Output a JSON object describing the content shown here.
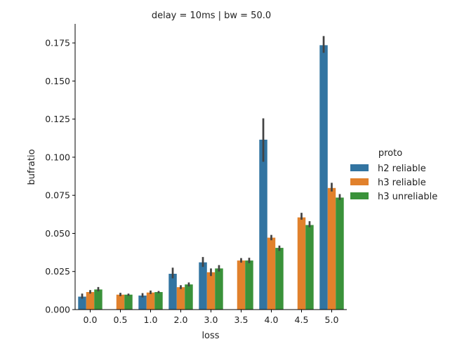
{
  "chart_data": {
    "type": "bar",
    "title": "delay = 10ms | bw = 50.0",
    "xlabel": "loss",
    "ylabel": "bufratio",
    "categories": [
      "0.0",
      "0.5",
      "1.0",
      "2.0",
      "3.0",
      "3.5",
      "4.0",
      "4.5",
      "5.0"
    ],
    "ylim": [
      0,
      0.1875
    ],
    "yticks": [
      0.0,
      0.025,
      0.05,
      0.075,
      0.1,
      0.125,
      0.15,
      0.175
    ],
    "ytick_labels": [
      "0.000",
      "0.025",
      "0.050",
      "0.075",
      "0.100",
      "0.125",
      "0.150",
      "0.175"
    ],
    "legend_title": "proto",
    "legend_position": "right",
    "grid": false,
    "series": [
      {
        "name": "h2 reliable",
        "color": "#3274a1",
        "values": [
          0.0085,
          null,
          0.0092,
          0.0235,
          0.031,
          null,
          0.1115,
          null,
          0.1735
        ],
        "err_low": [
          0.0072,
          null,
          0.008,
          0.0205,
          0.028,
          null,
          0.097,
          null,
          0.1685
        ],
        "err_high": [
          0.0105,
          null,
          0.0108,
          0.0275,
          0.0345,
          null,
          0.1255,
          null,
          0.1795
        ]
      },
      {
        "name": "h3 reliable",
        "color": "#e1812c",
        "values": [
          0.0115,
          0.0098,
          0.0112,
          0.0147,
          0.0245,
          0.0322,
          0.0472,
          0.0605,
          0.0798
        ],
        "err_low": [
          0.0105,
          0.0088,
          0.0102,
          0.0135,
          0.022,
          0.0308,
          0.0455,
          0.059,
          0.0775
        ],
        "err_high": [
          0.0128,
          0.011,
          0.0125,
          0.016,
          0.027,
          0.0338,
          0.049,
          0.0635,
          0.0832
        ]
      },
      {
        "name": "h3 unreliable",
        "color": "#3a923a",
        "values": [
          0.0132,
          0.0098,
          0.0115,
          0.0165,
          0.027,
          0.0322,
          0.0405,
          0.0555,
          0.0735
        ],
        "err_low": [
          0.012,
          0.009,
          0.0108,
          0.0152,
          0.025,
          0.0305,
          0.0385,
          0.054,
          0.072
        ],
        "err_high": [
          0.0148,
          0.0105,
          0.0122,
          0.0178,
          0.0292,
          0.034,
          0.042,
          0.058,
          0.0758
        ]
      }
    ]
  }
}
